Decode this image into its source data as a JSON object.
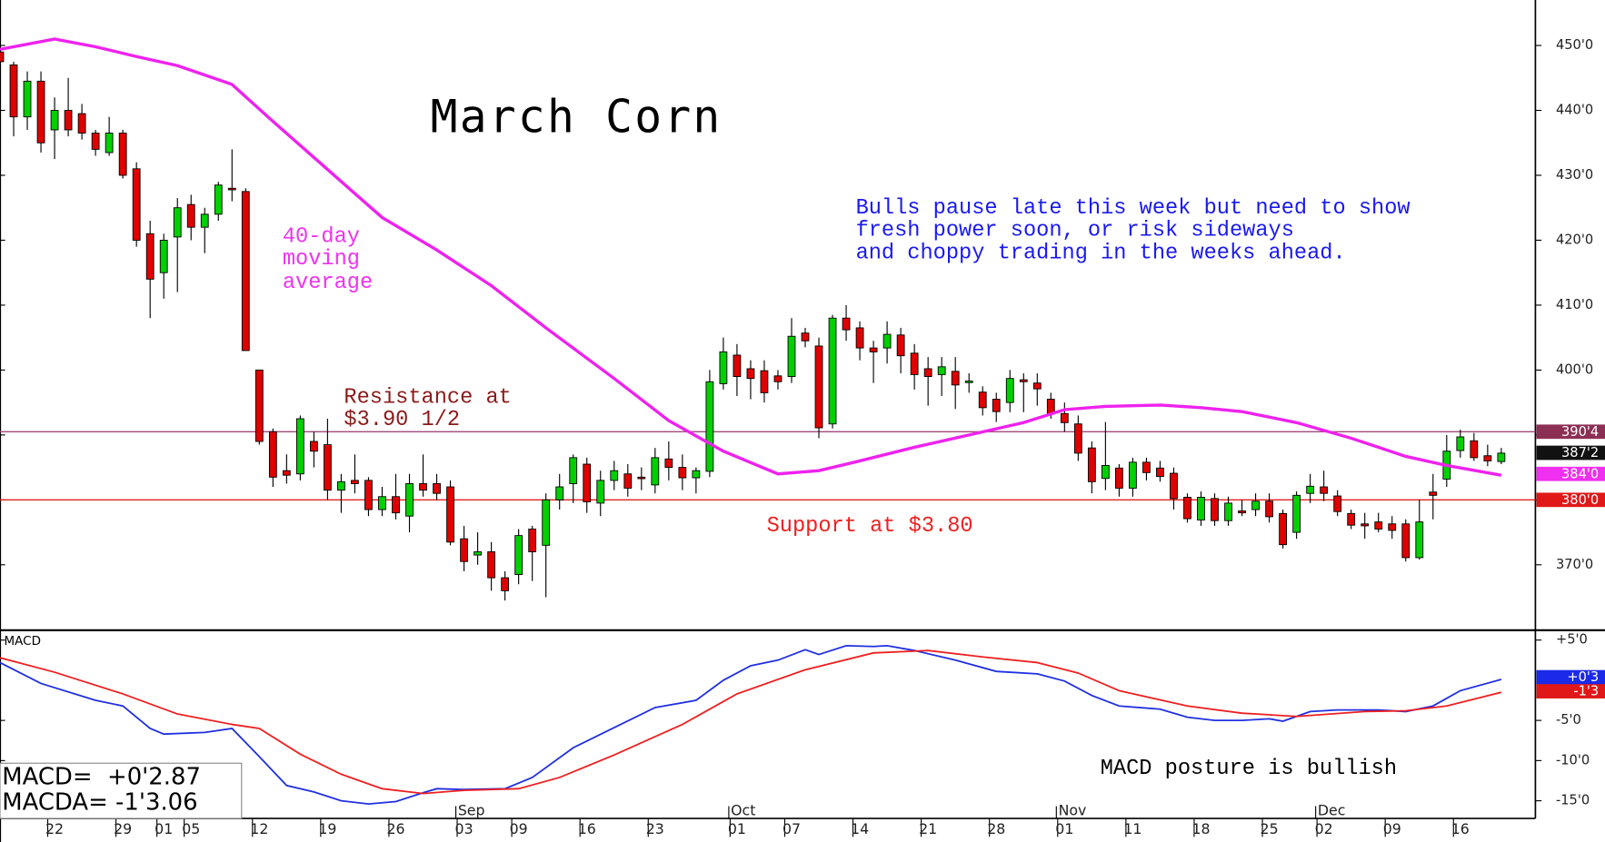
{
  "chart_data": [
    {
      "type": "candlestick",
      "title": "March Corn",
      "ma_label": [
        "40-day",
        "moving",
        "average"
      ],
      "resistance_label": [
        "Resistance at",
        "$3.90 1/2"
      ],
      "support_label": "Support at $3.80",
      "comment": [
        "Bulls pause late this week but need to show",
        "fresh power soon, or risk sideways",
        "and choppy trading in the weeks ahead."
      ],
      "xlim": [
        0,
        112.5
      ],
      "ylim": [
        360,
        457
      ],
      "yticks": [
        {
          "value": 370,
          "label": "370'0"
        },
        {
          "value": 380,
          "label": "380'0"
        },
        {
          "value": 390,
          "label": "390'0"
        },
        {
          "value": 400,
          "label": "400'0"
        },
        {
          "value": 410,
          "label": "410'0"
        },
        {
          "value": 420,
          "label": "420'0"
        },
        {
          "value": 430,
          "label": "430'0"
        },
        {
          "value": 440,
          "label": "440'0"
        },
        {
          "value": 450,
          "label": "450'0"
        }
      ],
      "up_color": "#00d000",
      "down_color": "#e00000",
      "candles": {
        "x": [
          0,
          1,
          2,
          3,
          4,
          5,
          6,
          7,
          8,
          9,
          10,
          11,
          12,
          13,
          14,
          15,
          16,
          17,
          18,
          19,
          20,
          21,
          22,
          23,
          24,
          25,
          26,
          27,
          28,
          29,
          30,
          31,
          32,
          33,
          34,
          35,
          36,
          37,
          38,
          39,
          40,
          41,
          42,
          43,
          44,
          45,
          46,
          47,
          48,
          49,
          50,
          51,
          52,
          53,
          54,
          55,
          56,
          57,
          58,
          59,
          60,
          61,
          62,
          63,
          64,
          65,
          66,
          67,
          68,
          69,
          70,
          71,
          72,
          73,
          74,
          75,
          76,
          77,
          78,
          79,
          80,
          81,
          82,
          83,
          84,
          85,
          86,
          87,
          88,
          89,
          90,
          91,
          92,
          93,
          94,
          95,
          96,
          97,
          98,
          99,
          100,
          101,
          102,
          103,
          104,
          105,
          106,
          107,
          108,
          109,
          110
        ],
        "open": [
          449,
          447,
          439,
          444.5,
          437,
          440,
          439.5,
          436.5,
          433.5,
          436.5,
          431,
          421,
          415,
          420.5,
          425.5,
          422,
          424,
          428,
          427.5,
          400,
          390.5,
          384.5,
          384,
          389,
          388.5,
          381.5,
          383,
          383,
          378.5,
          380.5,
          377.5,
          382.5,
          382.5,
          382,
          374,
          371.5,
          372,
          368,
          368.5,
          375.5,
          373,
          380,
          382.5,
          385.5,
          379.5,
          383,
          384,
          383.5,
          382.3,
          386.3,
          385,
          383.4,
          384.4,
          397.9,
          402.3,
          400.2,
          399.9,
          399.1,
          399,
          405.7,
          403.7,
          391.7,
          408,
          406.5,
          403.4,
          403.4,
          405.4,
          402.6,
          400.2,
          399.3,
          399.8,
          398.1,
          396.6,
          395.5,
          395,
          398.5,
          398,
          395.5,
          393.3,
          391.7,
          388,
          383.3,
          384.9,
          381.8,
          385.8,
          384.9,
          384.1,
          380.4,
          376.9,
          380.2,
          376.8,
          378.3,
          378.5,
          379.8,
          377.9,
          375,
          381,
          382,
          380.6,
          377.9,
          376.3,
          376.6,
          376.3,
          376.3,
          371.1,
          381.2,
          383.2,
          387.6,
          389.1,
          386.8,
          385.9
        ],
        "high": [
          451,
          447.5,
          446,
          446,
          442,
          445,
          441,
          437,
          439,
          437,
          432,
          423,
          421,
          426.5,
          427,
          425,
          429,
          434,
          428,
          400,
          391,
          387,
          393,
          390.5,
          392.5,
          384,
          387,
          383.5,
          382,
          384,
          384,
          387,
          384,
          383,
          376,
          375,
          373.5,
          369,
          375.5,
          376,
          381,
          384,
          387,
          386.5,
          384.5,
          386,
          385.5,
          385,
          388,
          389,
          387,
          385,
          400,
          405,
          404,
          401.5,
          401.5,
          400,
          408,
          406.5,
          405,
          408.5,
          410,
          407.5,
          404.5,
          407.5,
          406.5,
          404,
          402,
          402,
          402,
          399.5,
          397.5,
          396.5,
          400,
          399.5,
          399.5,
          396.5,
          395,
          393,
          389,
          392,
          385.5,
          386.5,
          386.5,
          386,
          385,
          381,
          381.3,
          381,
          380.5,
          380,
          381,
          381,
          378.5,
          381.3,
          384,
          384.5,
          381.5,
          378.5,
          378,
          378,
          377.5,
          377,
          380,
          384,
          390,
          390.8,
          390.3,
          388.5,
          388
        ],
        "low": [
          446,
          436,
          437,
          433.5,
          432.5,
          436,
          435.5,
          433,
          433,
          429.5,
          419,
          408,
          411,
          412,
          420,
          418,
          423,
          426,
          403,
          388.5,
          382,
          382.5,
          383,
          385,
          380,
          378,
          381,
          377.5,
          377.5,
          377,
          375,
          380.5,
          380,
          373,
          369,
          370,
          366,
          364.5,
          367,
          367.5,
          365,
          378.5,
          379.5,
          378,
          377.5,
          381.5,
          380.5,
          381.5,
          381,
          383,
          381.5,
          381,
          383.5,
          397,
          396,
          395.5,
          395,
          397,
          398,
          403.5,
          389.5,
          391,
          404.5,
          401.5,
          398,
          401,
          399.5,
          397,
          394.5,
          396,
          394,
          396.5,
          393,
          392,
          393.5,
          393.5,
          394.5,
          392.5,
          390.5,
          386,
          381,
          381.5,
          380.5,
          380.5,
          383,
          382.8,
          378.5,
          376.5,
          376,
          376,
          376,
          377.5,
          377.5,
          376.5,
          372.5,
          374,
          379.5,
          379.8,
          377.5,
          375.5,
          374,
          375,
          374,
          370.5,
          370.8,
          377,
          382,
          386.5,
          386,
          385.2,
          385.5
        ],
        "close": [
          447.5,
          439,
          444.5,
          435,
          440,
          437,
          436.5,
          434,
          436.5,
          430,
          420,
          414,
          420,
          425,
          422,
          424,
          428.5,
          427.8,
          403,
          389,
          383.5,
          383.8,
          392.5,
          387.5,
          381.5,
          382.8,
          382.5,
          378.5,
          380.5,
          378,
          382.5,
          381.5,
          381,
          373.5,
          370.5,
          372,
          368,
          366,
          374.5,
          372,
          380,
          382,
          386.5,
          379.7,
          383,
          384.5,
          381.8,
          383.3,
          386.5,
          385,
          383.4,
          384.5,
          398.2,
          402.8,
          399,
          398.7,
          396.5,
          398.2,
          405.2,
          404.5,
          391.1,
          408,
          406.2,
          403.4,
          402.8,
          405.5,
          402.2,
          399.3,
          399,
          400.5,
          397.7,
          398.3,
          394.2,
          393.6,
          398.7,
          398.2,
          397.1,
          393.3,
          391.9,
          387.2,
          382.8,
          385.3,
          381.8,
          385.8,
          384.2,
          383.6,
          380.2,
          377.1,
          380.4,
          376.8,
          379.5,
          378,
          379.8,
          377.4,
          373.1,
          380.7,
          382.1,
          381,
          378.2,
          376.1,
          376,
          375.5,
          375.3,
          371.1,
          376.6,
          380.7,
          387.5,
          389.7,
          386.5,
          386,
          387.2
        ]
      },
      "series": [
        {
          "color": "#ee22ee",
          "x": [
            0,
            4,
            7,
            10,
            13,
            17,
            20,
            24,
            28,
            32,
            36,
            40,
            45,
            49,
            53,
            57,
            60,
            63,
            67,
            71,
            75,
            78,
            81,
            85,
            88,
            91,
            95,
            99,
            103,
            106,
            110
          ],
          "values": [
            449.4,
            451,
            449.8,
            448.3,
            446.9,
            444,
            438.3,
            430.9,
            423.5,
            418.5,
            413,
            406.5,
            398.7,
            392.2,
            387.5,
            384,
            384.5,
            386,
            388.1,
            390,
            391.9,
            393.9,
            394.4,
            394.6,
            394.2,
            393.6,
            391.9,
            389.5,
            386.7,
            385.3,
            383.8
          ]
        }
      ],
      "hlines": [
        {
          "value": 390.5,
          "color": "#a04a7a"
        },
        {
          "value": 380,
          "color": "#e02020"
        }
      ],
      "markers": [
        {
          "value": 390.5,
          "label": "390'4",
          "color": "#8c2f55"
        },
        {
          "value": 387.25,
          "label": "387'2",
          "color": "#111111"
        },
        {
          "value": 384,
          "label": "384'0",
          "color": "#f030f0"
        },
        {
          "value": 380,
          "label": "380'0",
          "color": "#e01818"
        }
      ]
    },
    {
      "type": "line",
      "title": "MACD",
      "comment": "MACD posture is bullish",
      "readout": [
        "MACD=  +0'2.87",
        "MACDA= -1'3.06"
      ],
      "xlim": [
        0,
        112.5
      ],
      "ylim": [
        -17.2,
        6.1
      ],
      "yticks": [
        {
          "value": 5,
          "label": "+5'0"
        },
        {
          "value": -5,
          "label": "-5'0"
        },
        {
          "value": -10,
          "label": "-10'0"
        },
        {
          "value": -15,
          "label": "-15'0"
        }
      ],
      "xticks": [
        {
          "value": 4,
          "label": "22"
        },
        {
          "value": 9,
          "label": "29"
        },
        {
          "value": 12,
          "label": "01"
        },
        {
          "value": 14,
          "label": "05"
        },
        {
          "value": 19,
          "label": "12"
        },
        {
          "value": 24,
          "label": "19"
        },
        {
          "value": 29,
          "label": "26"
        },
        {
          "value": 34,
          "label": "03"
        },
        {
          "value": 38,
          "label": "09"
        },
        {
          "value": 43,
          "label": "16"
        },
        {
          "value": 48,
          "label": "23"
        },
        {
          "value": 54,
          "label": "01"
        },
        {
          "value": 58,
          "label": "07"
        },
        {
          "value": 63,
          "label": "14"
        },
        {
          "value": 68,
          "label": "21"
        },
        {
          "value": 73,
          "label": "28"
        },
        {
          "value": 78,
          "label": "01"
        },
        {
          "value": 83,
          "label": "11"
        },
        {
          "value": 88,
          "label": "18"
        },
        {
          "value": 93,
          "label": "25"
        },
        {
          "value": 97,
          "label": "02"
        },
        {
          "value": 102,
          "label": "09"
        },
        {
          "value": 107,
          "label": "16"
        }
      ],
      "month_ticks": [
        {
          "value": 34,
          "label": "Sep"
        },
        {
          "value": 54,
          "label": "Oct"
        },
        {
          "value": 78,
          "label": "Nov"
        },
        {
          "value": 97,
          "label": "Dec"
        }
      ],
      "series": [
        {
          "color": "#2030e0",
          "x": [
            0,
            3,
            7,
            9,
            11,
            12,
            15,
            17,
            19,
            21,
            23,
            25,
            27,
            29,
            31,
            32,
            34,
            37,
            39,
            42,
            45,
            48,
            51,
            53,
            55,
            57,
            59,
            60,
            62,
            64,
            65,
            67,
            70,
            73,
            76,
            78,
            80,
            82,
            85,
            87,
            89,
            91,
            93,
            94,
            96,
            98,
            101,
            103,
            105,
            107,
            110
          ],
          "values": [
            2.2,
            -0.4,
            -2.5,
            -3.2,
            -6,
            -6.7,
            -6.5,
            -6,
            -9.5,
            -13.1,
            -13.9,
            -15,
            -15.4,
            -15.1,
            -14,
            -13.5,
            -13.6,
            -13.5,
            -12.1,
            -8.4,
            -5.9,
            -3.4,
            -2.5,
            0,
            1.8,
            2.5,
            3.8,
            3.2,
            4.3,
            4.2,
            4.3,
            3.7,
            2.5,
            1.1,
            0.8,
            -0.1,
            -1.9,
            -3.2,
            -3.6,
            -4.6,
            -5,
            -5,
            -4.8,
            -5.1,
            -3.9,
            -3.7,
            -3.7,
            -3.9,
            -3.2,
            -1.3,
            0.1
          ]
        },
        {
          "color": "#ee2020",
          "x": [
            0,
            4,
            9,
            13,
            17,
            19,
            22,
            25,
            28,
            31,
            34,
            38,
            41,
            45,
            50,
            54,
            59,
            64,
            68,
            72,
            76,
            79,
            82,
            87,
            91,
            95,
            100,
            103,
            106,
            110
          ],
          "values": [
            2.8,
            1,
            -1.7,
            -4.2,
            -5.5,
            -6,
            -9.2,
            -11.7,
            -13.5,
            -14.1,
            -13.7,
            -13.5,
            -12.1,
            -9.3,
            -5.5,
            -1.7,
            1.3,
            3.4,
            3.7,
            2.9,
            2.2,
            0.9,
            -1.3,
            -3.2,
            -4.1,
            -4.5,
            -3.9,
            -3.8,
            -3.2,
            -1.5
          ]
        }
      ],
      "markers": [
        {
          "value": 0.375,
          "label": "+0'3",
          "color": "#1a2ae8"
        },
        {
          "value": -1.375,
          "label": "-1'3",
          "color": "#e01818"
        }
      ]
    }
  ]
}
